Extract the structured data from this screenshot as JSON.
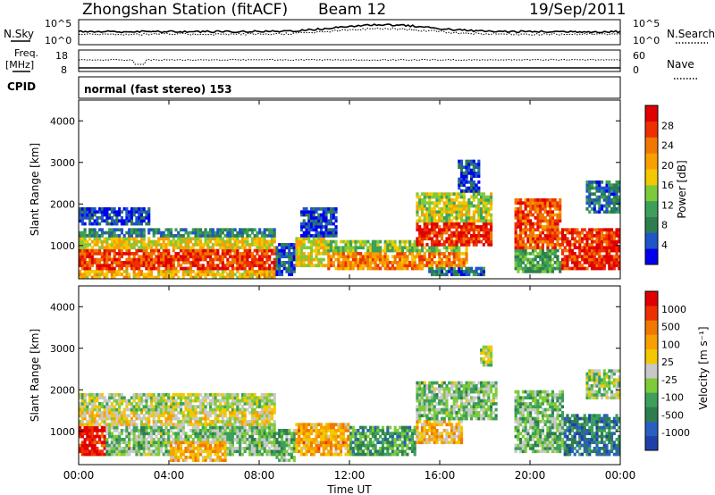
{
  "header": {
    "station": "Zhongshan Station (fitACF)",
    "beam": "Beam 12",
    "date": "19/Sep/2011"
  },
  "sky_panel": {
    "left_label": "N.Sky",
    "right_label": "N.Search",
    "tick_top": "10^5",
    "tick_bottom": "10^0"
  },
  "freq_panel": {
    "left_label_top": "Freq.",
    "left_label_bottom": "[MHz]",
    "left_tick_top": "18",
    "left_tick_bottom": "8",
    "right_label": "Nave",
    "right_tick_top": "60",
    "right_tick_bottom": "0"
  },
  "cpid": {
    "label": "CPID",
    "text": "normal (fast stereo) 153"
  },
  "chart_data": [
    {
      "type": "heatmap",
      "title": "",
      "xlabel": "Time UT",
      "ylabel": "Slant Range [km]",
      "xlim_hours": [
        0,
        24
      ],
      "ylim": [
        200,
        4500
      ],
      "y_ticks": [
        "1000",
        "2000",
        "3000",
        "4000"
      ],
      "x_ticks": [
        "00:00",
        "04:00",
        "08:00",
        "12:00",
        "16:00",
        "20:00",
        "00:00"
      ],
      "colorbar": {
        "label": "Power [dB]",
        "ticks": [
          "4",
          "8",
          "12",
          "16",
          "20",
          "24",
          "28"
        ],
        "colors": [
          "#0000ee",
          "#1e55c8",
          "#2e7d4f",
          "#3ca05a",
          "#7ecb3a",
          "#f4c800",
          "#f8a000",
          "#f07800",
          "#ee3000",
          "#e00000"
        ]
      },
      "regions": [
        {
          "t0": 0.0,
          "t1": 8.7,
          "r0": 400,
          "r1": 950,
          "level": 0.85
        },
        {
          "t0": 0.0,
          "t1": 8.7,
          "r0": 950,
          "r1": 1200,
          "level": 0.55
        },
        {
          "t0": 0.0,
          "t1": 8.7,
          "r0": 1200,
          "r1": 1450,
          "level": 0.25
        },
        {
          "t0": 0.0,
          "t1": 3.2,
          "r0": 1500,
          "r1": 1900,
          "level": 0.12
        },
        {
          "t0": 0.0,
          "t1": 8.7,
          "r0": 200,
          "r1": 400,
          "level": 0.6
        },
        {
          "t0": 8.7,
          "t1": 9.6,
          "r0": 250,
          "r1": 1050,
          "level": 0.18
        },
        {
          "t0": 9.6,
          "t1": 11.0,
          "r0": 500,
          "r1": 1200,
          "level": 0.55
        },
        {
          "t0": 9.8,
          "t1": 11.5,
          "r0": 1200,
          "r1": 1900,
          "level": 0.12
        },
        {
          "t0": 11.0,
          "t1": 17.2,
          "r0": 450,
          "r1": 850,
          "level": 0.72
        },
        {
          "t0": 11.0,
          "t1": 17.2,
          "r0": 850,
          "r1": 1100,
          "level": 0.45
        },
        {
          "t0": 15.0,
          "t1": 18.3,
          "r0": 1000,
          "r1": 1550,
          "level": 0.9
        },
        {
          "t0": 15.0,
          "t1": 18.3,
          "r0": 1550,
          "r1": 2250,
          "level": 0.5
        },
        {
          "t0": 15.5,
          "t1": 18.0,
          "r0": 250,
          "r1": 500,
          "level": 0.2
        },
        {
          "t0": 16.8,
          "t1": 17.8,
          "r0": 2300,
          "r1": 3100,
          "level": 0.15
        },
        {
          "t0": 19.3,
          "t1": 21.4,
          "r0": 900,
          "r1": 2100,
          "level": 0.82
        },
        {
          "t0": 19.3,
          "t1": 21.4,
          "r0": 350,
          "r1": 900,
          "level": 0.35
        },
        {
          "t0": 21.4,
          "t1": 24.0,
          "r0": 450,
          "r1": 1450,
          "level": 0.88
        },
        {
          "t0": 22.5,
          "t1": 24.0,
          "r0": 1800,
          "r1": 2600,
          "level": 0.22
        }
      ]
    },
    {
      "type": "heatmap",
      "title": "",
      "xlabel": "Time UT",
      "ylabel": "Slant Range [km]",
      "xlim_hours": [
        0,
        24
      ],
      "ylim": [
        200,
        4500
      ],
      "y_ticks": [
        "1000",
        "2000",
        "3000",
        "4000"
      ],
      "x_ticks": [
        "00:00",
        "04:00",
        "08:00",
        "12:00",
        "16:00",
        "20:00",
        "00:00"
      ],
      "colorbar": {
        "label": "Velocity [m s⁻¹]",
        "ticks": [
          "1000",
          "500",
          "100",
          "25",
          "-25",
          "-100",
          "-500",
          "-1000"
        ],
        "colors": [
          "#1f3faa",
          "#2a5fc0",
          "#2e7d4f",
          "#3ca05a",
          "#7ecb3a",
          "#c8c8c8",
          "#f4c800",
          "#f8a000",
          "#f07800",
          "#ee3000",
          "#e00000"
        ]
      },
      "regions": [
        {
          "t0": 0.0,
          "t1": 8.7,
          "r0": 400,
          "r1": 1100,
          "level": 0.4
        },
        {
          "t0": 0.0,
          "t1": 1.2,
          "r0": 400,
          "r1": 1200,
          "level": 0.95
        },
        {
          "t0": 0.0,
          "t1": 8.7,
          "r0": 1100,
          "r1": 1500,
          "level": 0.55
        },
        {
          "t0": 0.0,
          "t1": 8.7,
          "r0": 1500,
          "r1": 1900,
          "level": 0.48
        },
        {
          "t0": 4.0,
          "t1": 6.5,
          "r0": 300,
          "r1": 800,
          "level": 0.65
        },
        {
          "t0": 8.7,
          "t1": 9.6,
          "r0": 300,
          "r1": 1050,
          "level": 0.35
        },
        {
          "t0": 9.6,
          "t1": 12.0,
          "r0": 450,
          "r1": 1200,
          "level": 0.68
        },
        {
          "t0": 12.0,
          "t1": 15.0,
          "r0": 450,
          "r1": 1100,
          "level": 0.3
        },
        {
          "t0": 15.0,
          "t1": 17.0,
          "r0": 700,
          "r1": 1500,
          "level": 0.62
        },
        {
          "t0": 15.0,
          "t1": 18.5,
          "r0": 1300,
          "r1": 2200,
          "level": 0.4
        },
        {
          "t0": 17.8,
          "t1": 18.3,
          "r0": 2600,
          "r1": 3100,
          "level": 0.5
        },
        {
          "t0": 19.3,
          "t1": 21.5,
          "r0": 500,
          "r1": 2000,
          "level": 0.38
        },
        {
          "t0": 21.5,
          "t1": 24.0,
          "r0": 450,
          "r1": 1450,
          "level": 0.2
        },
        {
          "t0": 22.5,
          "t1": 24.0,
          "r0": 1800,
          "r1": 2500,
          "level": 0.45
        }
      ]
    }
  ]
}
